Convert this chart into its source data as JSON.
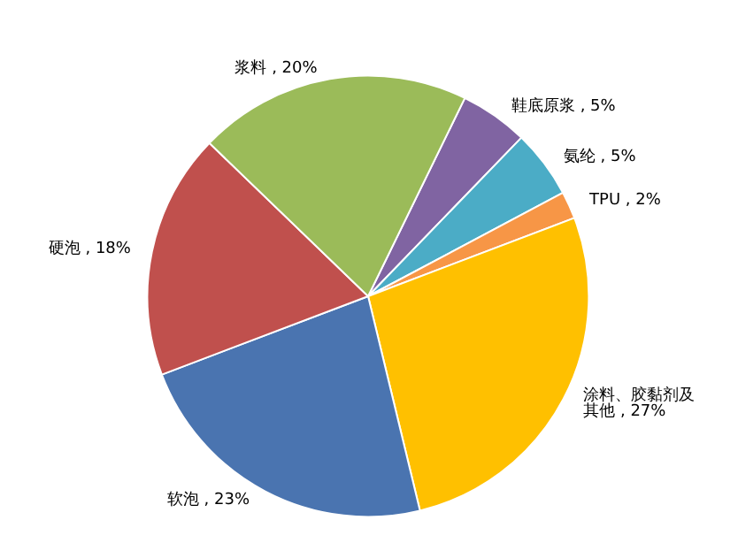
{
  "chart_data": {
    "type": "pie",
    "categories": [
      "鞋底原浆",
      "氨纶",
      "TPU",
      "涂料、胶黏剂及其他",
      "软泡",
      "硬泡",
      "浆料"
    ],
    "values": [
      5,
      5,
      2,
      27,
      23,
      18,
      20
    ],
    "colors": [
      "#8064a2",
      "#4bacc6",
      "#f79646",
      "#ffc000",
      "#4a74b0",
      "#c0504d",
      "#9bbb59"
    ],
    "value_labels": [
      "5%",
      "5%",
      "2%",
      "27%",
      "23%",
      "18%",
      "20%"
    ],
    "legend": false
  }
}
